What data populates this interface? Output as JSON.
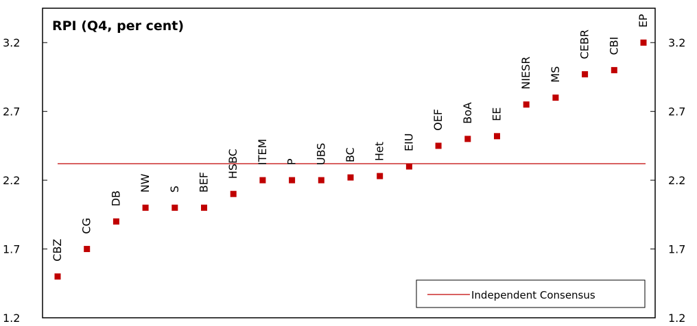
{
  "chart_data": {
    "type": "scatter",
    "title": "RPI (Q4, per cent)",
    "xlabel": "",
    "ylabel": "",
    "ylim": [
      1.2,
      3.45
    ],
    "y_ticks": [
      "1.2",
      "1.7",
      "2.2",
      "2.7",
      "3.2"
    ],
    "grid": false,
    "legend_position": "bottom-right",
    "point_color": "#c00000",
    "consensus_color": "#c00000",
    "categories": [
      "CBZ",
      "CG",
      "DB",
      "NW",
      "S",
      "BEF",
      "HSBC",
      "ITEM",
      "P",
      "UBS",
      "BC",
      "Het",
      "EIU",
      "OEF",
      "BoA",
      "EE",
      "NIESR",
      "MS",
      "CEBR",
      "CBI",
      "EP"
    ],
    "values": [
      1.5,
      1.7,
      1.9,
      2.0,
      2.0,
      2.0,
      2.1,
      2.2,
      2.2,
      2.2,
      2.22,
      2.23,
      2.3,
      2.45,
      2.5,
      2.52,
      2.75,
      2.8,
      2.97,
      3.0,
      3.2
    ],
    "series": [
      {
        "name": "Independent Consensus",
        "type": "line",
        "value": 2.32
      }
    ]
  }
}
